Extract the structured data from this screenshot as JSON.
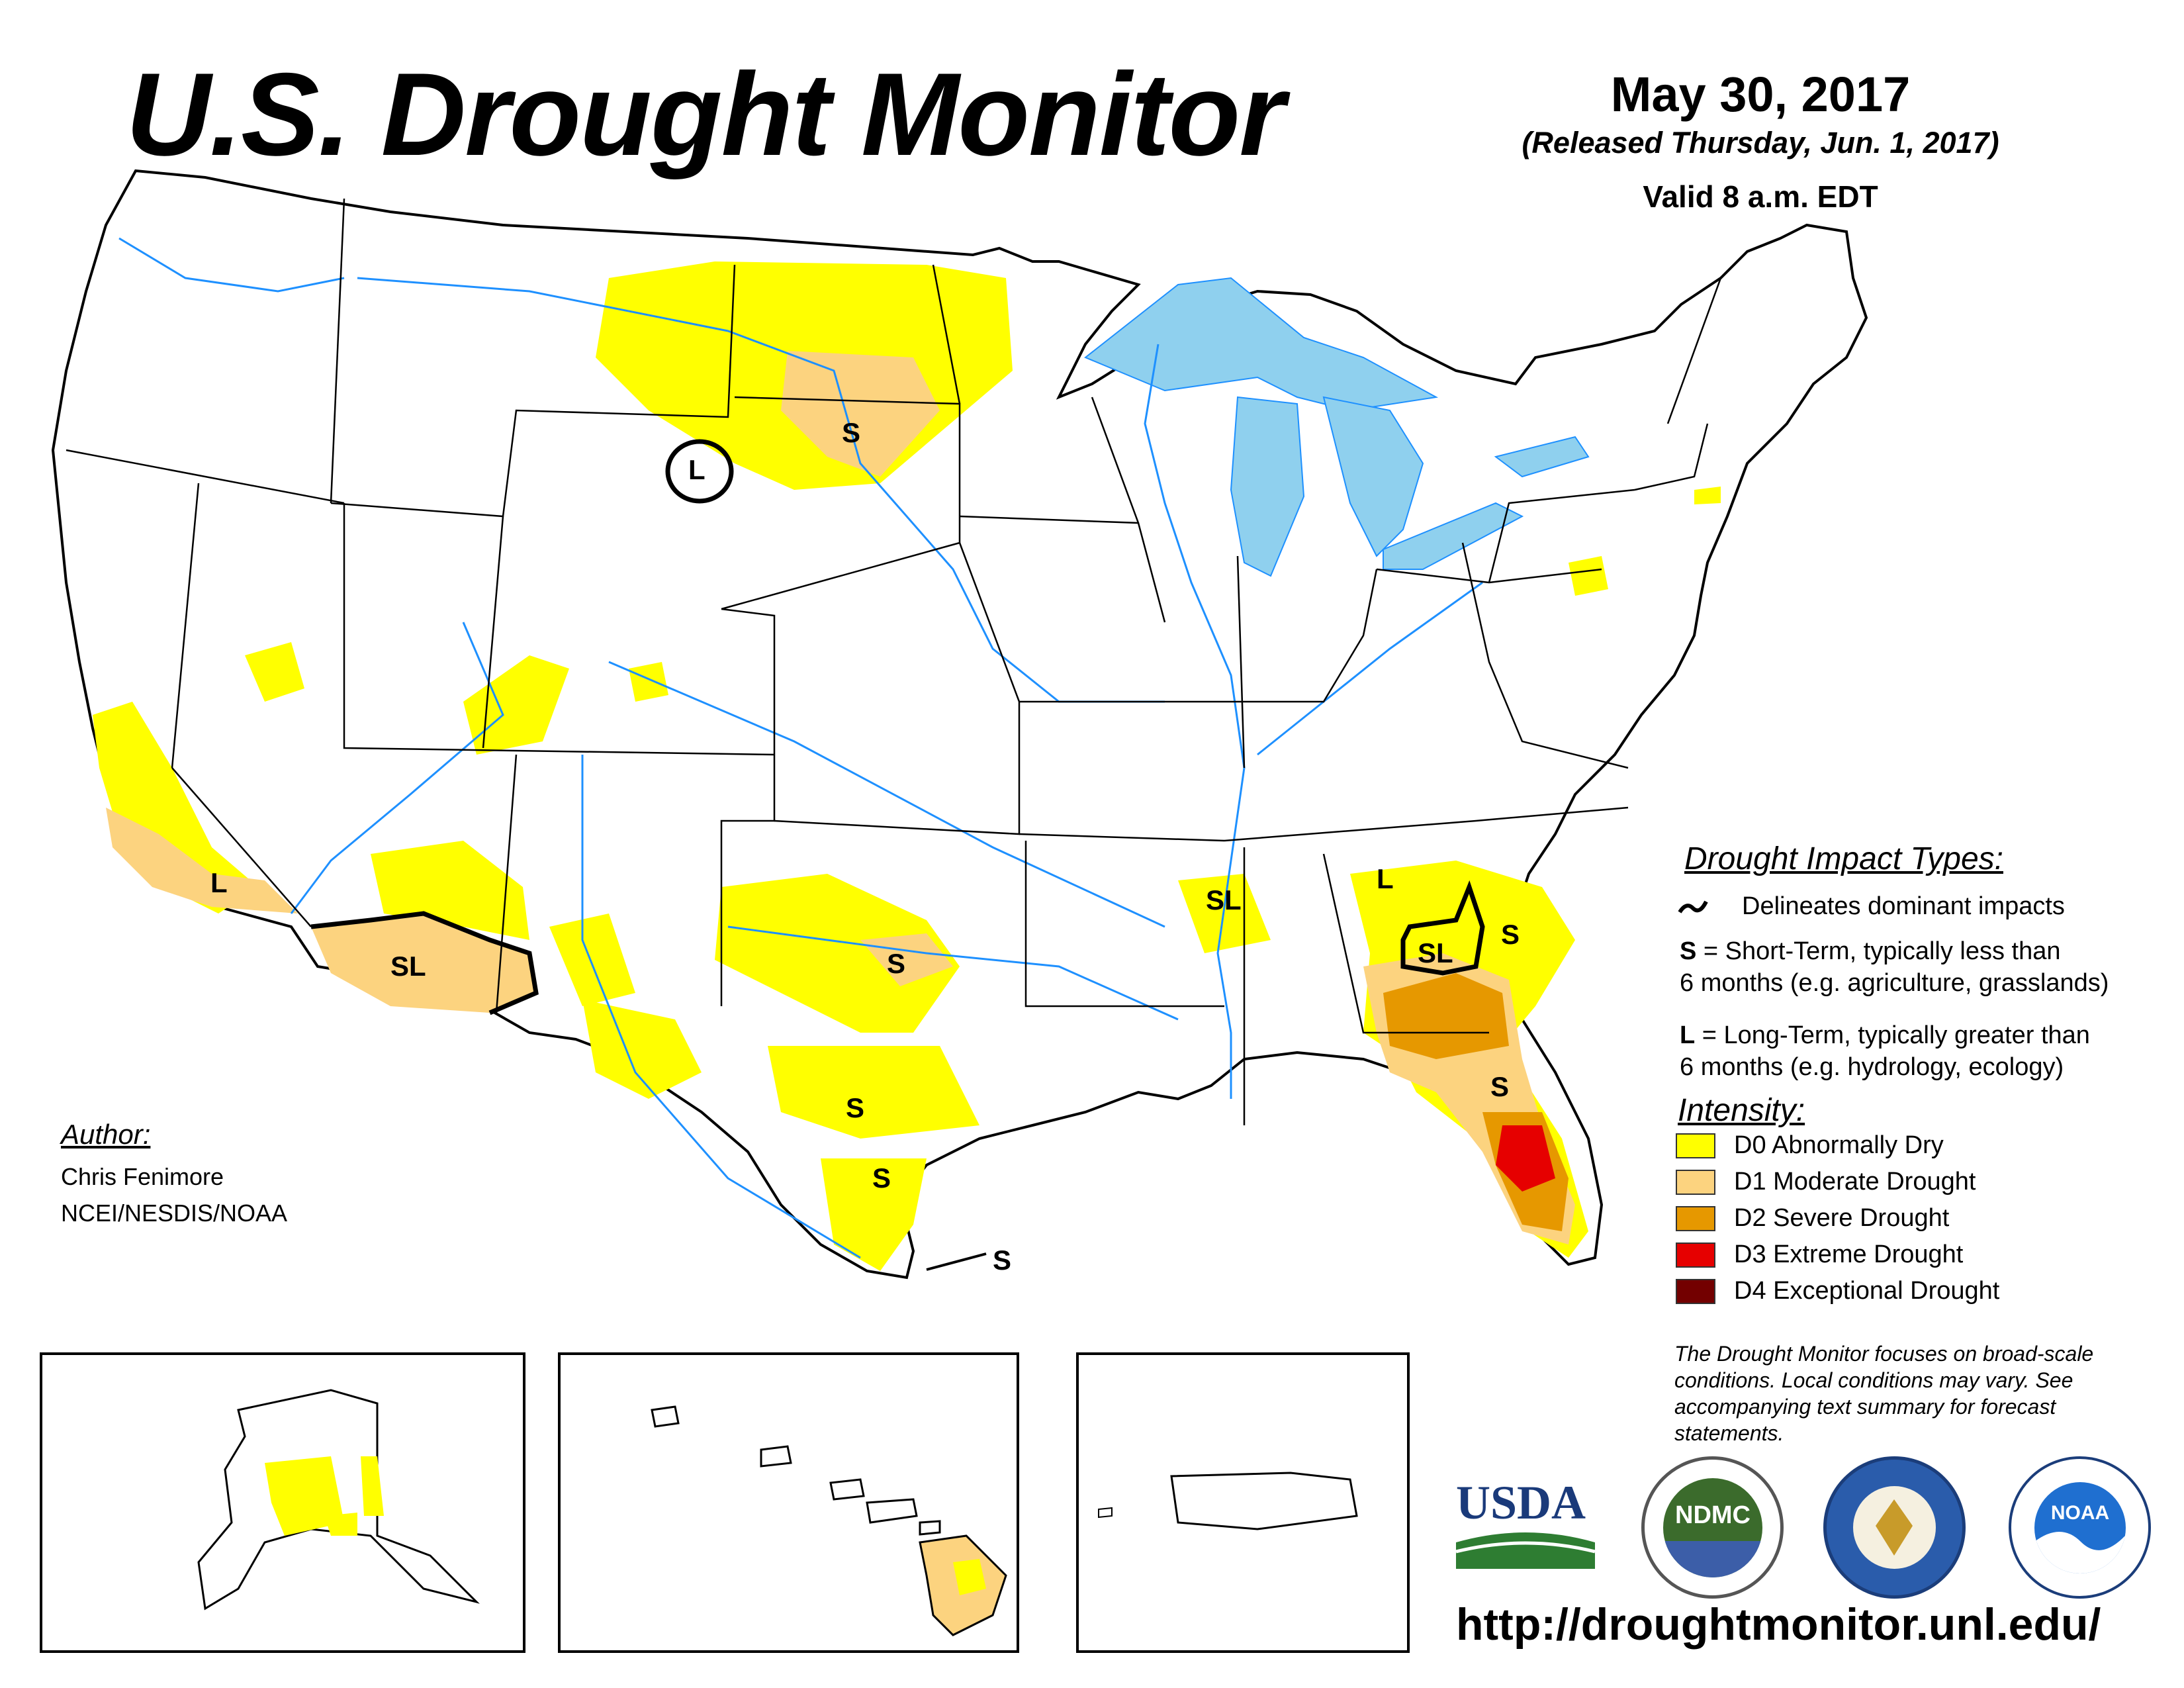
{
  "header": {
    "title": "U.S. Drought Monitor",
    "date": "May 30, 2017",
    "released": "(Released Thursday, Jun. 1, 2017)",
    "valid": "Valid 8 a.m. EDT"
  },
  "map_labels": {
    "s": "S",
    "l": "L",
    "sl": "SL"
  },
  "legend": {
    "impact_heading": "Drought Impact Types:",
    "delineates": "Delineates dominant impacts",
    "short_term_key": "S",
    "short_term_line1": " = Short-Term, typically less than",
    "short_term_line2": "6 months (e.g. agriculture, grasslands)",
    "long_term_key": "L",
    "long_term_line1": " = Long-Term, typically greater than",
    "long_term_line2": "6 months (e.g. hydrology, ecology)",
    "intensity_heading": "Intensity:",
    "categories": [
      {
        "label": "D0 Abnormally Dry",
        "color": "#ffff00"
      },
      {
        "label": "D1 Moderate Drought",
        "color": "#fcd37f"
      },
      {
        "label": "D2 Severe Drought",
        "color": "#e69800"
      },
      {
        "label": "D3 Extreme Drought",
        "color": "#e60000"
      },
      {
        "label": "D4 Exceptional Drought",
        "color": "#730000"
      }
    ]
  },
  "author": {
    "heading": "Author:",
    "name": "Chris Fenimore",
    "org": "NCEI/NESDIS/NOAA"
  },
  "disclaimer": "The Drought Monitor focuses on broad-scale conditions. Local conditions may vary. See accompanying text summary for forecast statements.",
  "url": "http://droughtmonitor.unl.edu/",
  "logos": {
    "usda": "USDA",
    "ndmc": "NDMC",
    "noaa": "NOAA"
  },
  "colors": {
    "water": "#8fd0ee",
    "rivers": "#1e90ff",
    "borders": "#000000",
    "d0": "#ffff00",
    "d1": "#fcd37f",
    "d2": "#e69800",
    "d3": "#e60000"
  }
}
